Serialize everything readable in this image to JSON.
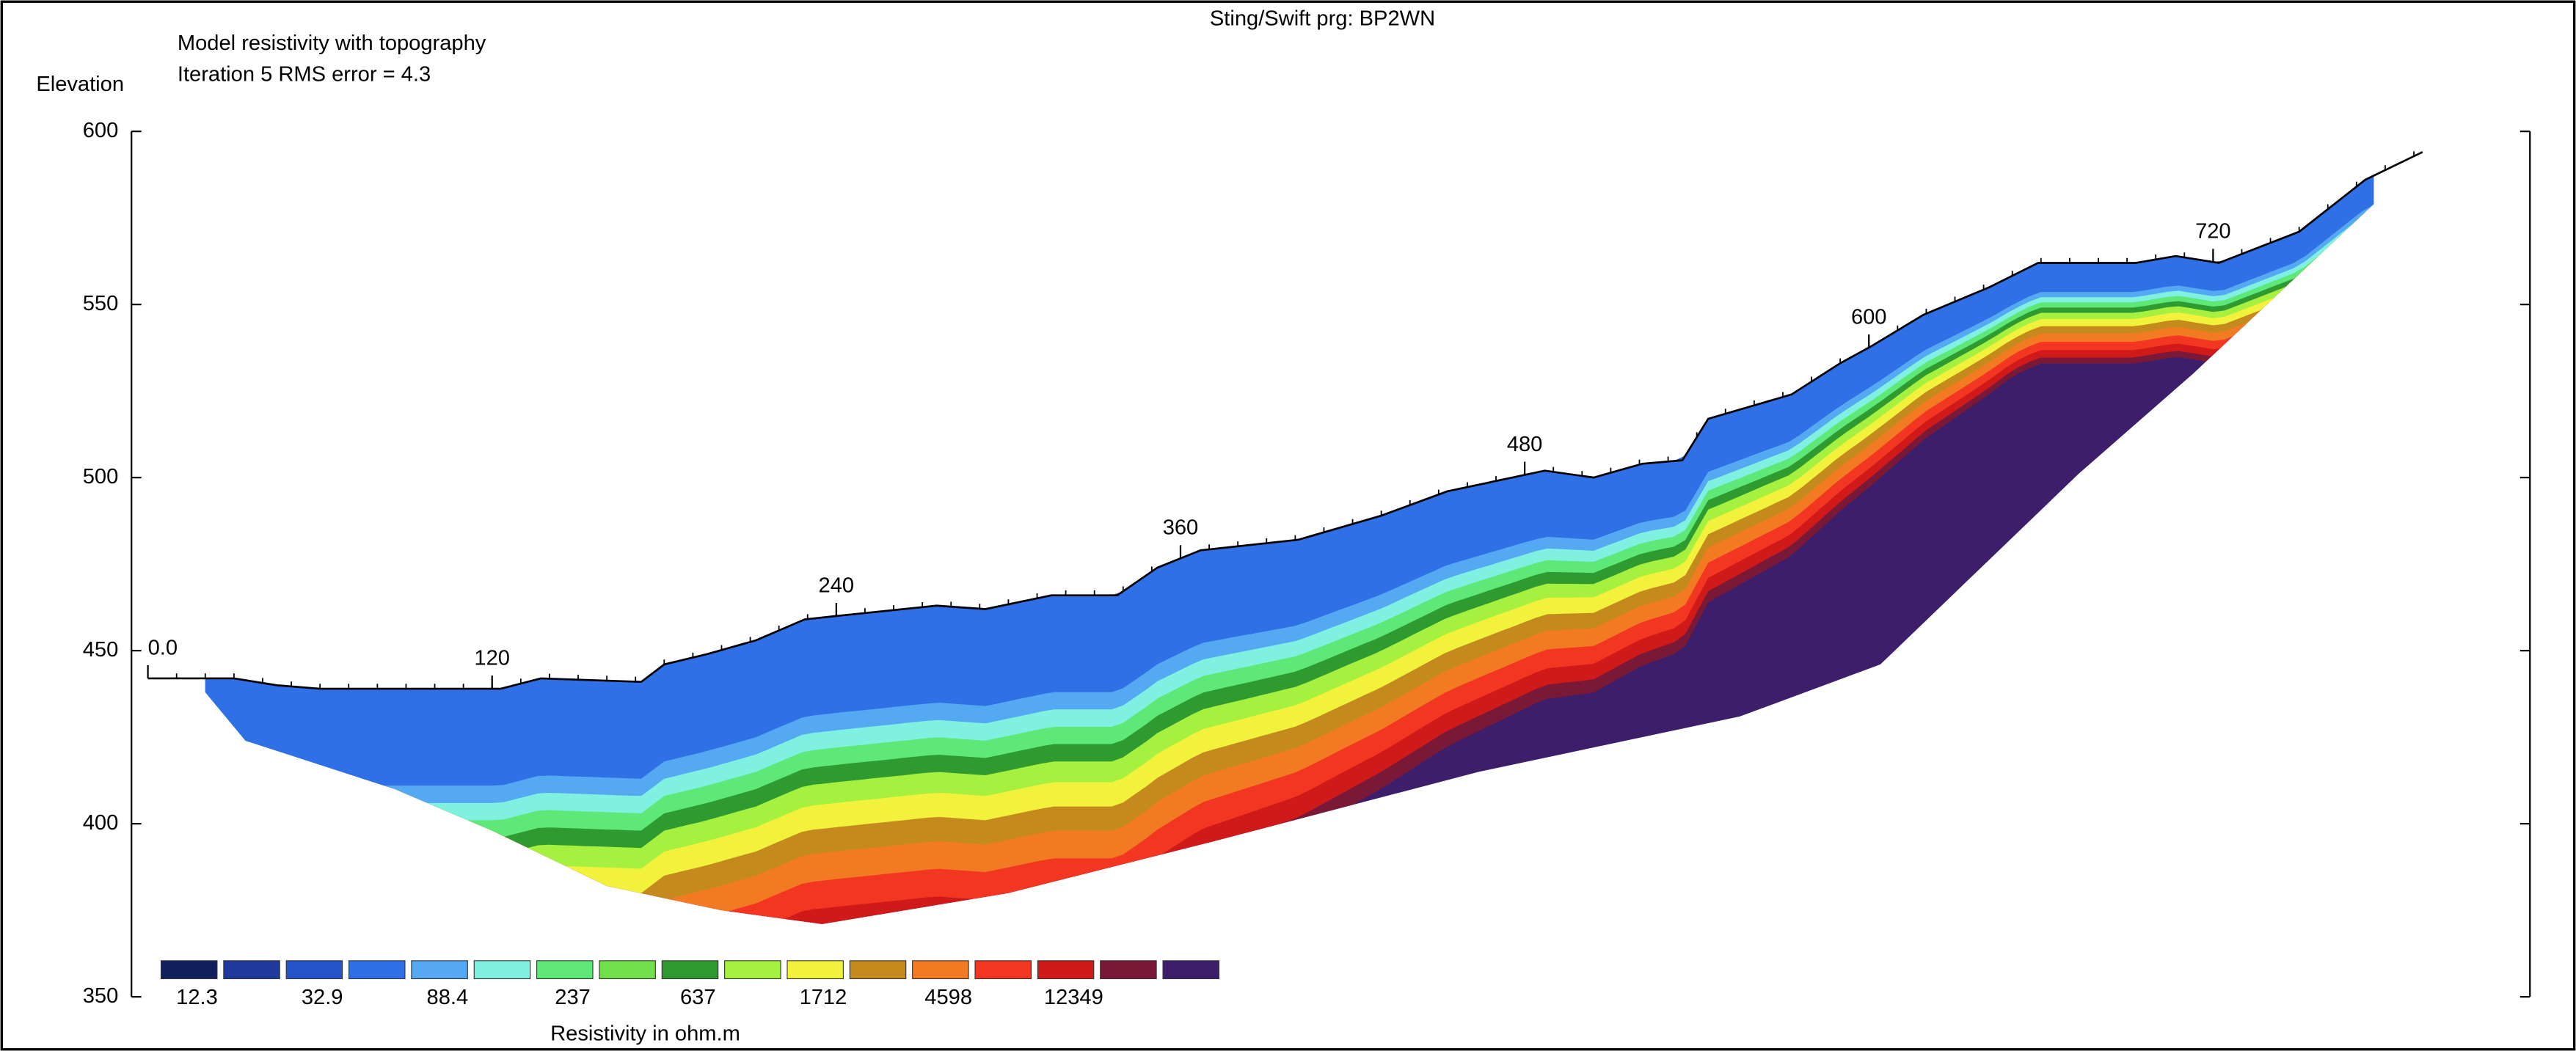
{
  "chart_data": {
    "type": "resistivity-section",
    "title": "Sting/Swift prg: BP2WN",
    "subtitle": [
      "Model resistivity with topography",
      "Iteration 5 RMS error = 4.3"
    ],
    "y_label": "Elevation",
    "ylim": [
      350,
      600
    ],
    "yticks": [
      350,
      400,
      450,
      500,
      550,
      600
    ],
    "distance_ticks": [
      {
        "value": 0,
        "label": "0.0"
      },
      120,
      240,
      360,
      480,
      600,
      720
    ],
    "topography": {
      "x": [
        0,
        30,
        45,
        60,
        90,
        123,
        137,
        172,
        180,
        195,
        212,
        229,
        240,
        275,
        292,
        315,
        338,
        352,
        367,
        401,
        430,
        453,
        487,
        504,
        521,
        535,
        544,
        573,
        590,
        601,
        619,
        642,
        659,
        693,
        707,
        722,
        750,
        773,
        793
      ],
      "elevation": [
        442,
        442,
        440,
        439,
        439,
        439,
        442,
        441,
        446,
        449,
        453,
        459,
        460,
        463,
        462,
        466,
        466,
        474,
        479,
        482,
        489,
        496,
        502,
        500,
        504,
        505,
        517,
        524,
        533,
        538,
        547,
        555,
        562,
        562,
        564,
        562,
        571,
        586,
        594
      ]
    },
    "model_bottom": {
      "x": [
        20,
        34,
        86,
        120,
        160,
        200,
        235,
        300,
        372,
        464,
        555,
        604,
        673,
        713,
        776
      ],
      "elevation": [
        438,
        424,
        410,
        398,
        382,
        375,
        371,
        380,
        395,
        415,
        431,
        446,
        501,
        530,
        579
      ]
    },
    "legend": {
      "title": "Resistivity in ohm.m",
      "colors": [
        "#10205e",
        "#1f3a9c",
        "#2553c8",
        "#3070e6",
        "#55a8f2",
        "#80f0e0",
        "#5ee878",
        "#72e04a",
        "#2e9a30",
        "#a6f040",
        "#f2f23c",
        "#c48a1e",
        "#f27a22",
        "#f23622",
        "#d01a1a",
        "#7a1838",
        "#3c1e6a"
      ],
      "labels": [
        12.3,
        32.9,
        88.4,
        237,
        637,
        1712,
        4598,
        12349
      ]
    }
  }
}
